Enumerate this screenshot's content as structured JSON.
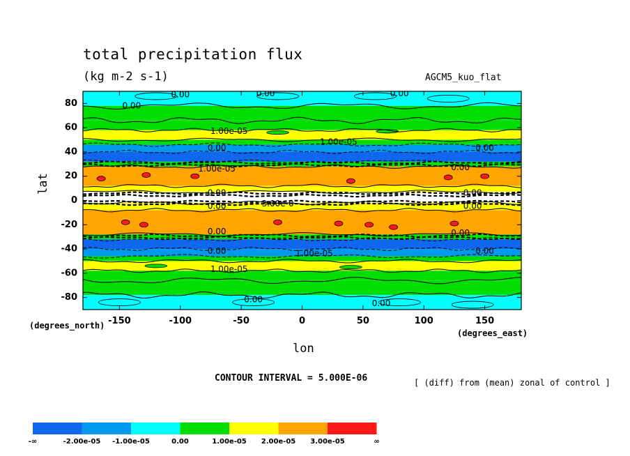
{
  "header": {
    "title": "total precipitation flux",
    "units": "(kg m-2 s-1)",
    "model": "AGCM5_kuo_flat"
  },
  "footer": {
    "contour_interval": "CONTOUR INTERVAL = 5.000E-06",
    "diff_note": "[ (diff) from (mean) zonal of control ]"
  },
  "chart_data": {
    "type": "heatmap",
    "title": "total precipitation flux",
    "subtitle": "(kg m-2 s-1)",
    "xlabel": "lon",
    "ylabel": "lat",
    "x_unit": "(degrees_east)",
    "y_unit": "(degrees_north)",
    "xlim": [
      -180,
      180
    ],
    "ylim": [
      -90,
      90
    ],
    "x_ticks": [
      -150,
      -100,
      -50,
      0,
      50,
      100,
      150
    ],
    "x_tick_labels": [
      "-150",
      "-100",
      "-50",
      "0",
      "50",
      "100",
      "150"
    ],
    "y_ticks": [
      80,
      60,
      40,
      20,
      0,
      -20,
      -40,
      -60,
      -80
    ],
    "y_tick_labels": [
      "80",
      "60",
      "40",
      "20",
      "0",
      "-20",
      "-40",
      "-60",
      "-80"
    ],
    "contour_interval": 5e-06,
    "color_levels": [
      {
        "label": "-∞",
        "color": "#1166ee"
      },
      {
        "label": "-2.00e-05",
        "color": "#0099ee"
      },
      {
        "label": "-1.00e-05",
        "color": "#00ffff"
      },
      {
        "label": "0.00",
        "color": "#00dd00"
      },
      {
        "label": "1.00e-05",
        "color": "#ffff00"
      },
      {
        "label": "2.00e-05",
        "color": "#ffa500"
      },
      {
        "label": "3.00e-05",
        "color": "#ff1a1a"
      },
      {
        "label": "∞",
        "color": null
      }
    ],
    "lat_bands": [
      {
        "lat_min": 78,
        "lat_max": 90,
        "value": -8e-06
      },
      {
        "lat_min": 66,
        "lat_max": 78,
        "value": 3e-06
      },
      {
        "lat_min": 58,
        "lat_max": 66,
        "value": 8e-06
      },
      {
        "lat_min": 50,
        "lat_max": 58,
        "value": 1.3e-05
      },
      {
        "lat_min": 46,
        "lat_max": 50,
        "value": 3e-06
      },
      {
        "lat_min": 40,
        "lat_max": 46,
        "value": -1.5e-05
      },
      {
        "lat_min": 32,
        "lat_max": 40,
        "value": -2.2e-05
      },
      {
        "lat_min": 28,
        "lat_max": 32,
        "value": 2e-06
      },
      {
        "lat_min": 12,
        "lat_max": 28,
        "value": 2.5e-05
      },
      {
        "lat_min": 7,
        "lat_max": 12,
        "value": 1.3e-05
      },
      {
        "lat_min": -2,
        "lat_max": 7,
        "value": null
      },
      {
        "lat_min": -8,
        "lat_max": -2,
        "value": 1.3e-05
      },
      {
        "lat_min": -28,
        "lat_max": -8,
        "value": 2.5e-05
      },
      {
        "lat_min": -32,
        "lat_max": -28,
        "value": 2e-06
      },
      {
        "lat_min": -40,
        "lat_max": -32,
        "value": -2.2e-05
      },
      {
        "lat_min": -46,
        "lat_max": -40,
        "value": -1.5e-05
      },
      {
        "lat_min": -50,
        "lat_max": -46,
        "value": 3e-06
      },
      {
        "lat_min": -58,
        "lat_max": -50,
        "value": 1.3e-05
      },
      {
        "lat_min": -66,
        "lat_max": -58,
        "value": 8e-06
      },
      {
        "lat_min": -78,
        "lat_max": -66,
        "value": 3e-06
      },
      {
        "lat_min": -90,
        "lat_max": -78,
        "value": -8e-06
      }
    ],
    "contour_labels": [
      {
        "text": "0.00",
        "lon": -100,
        "lat": 87
      },
      {
        "text": "0.00",
        "lon": -30,
        "lat": 88
      },
      {
        "text": "0.00",
        "lon": 80,
        "lat": 88
      },
      {
        "text": "0.00",
        "lon": -140,
        "lat": 78
      },
      {
        "text": "1.00e-05",
        "lon": -60,
        "lat": 57
      },
      {
        "text": "1.00e-05",
        "lon": 30,
        "lat": 48
      },
      {
        "text": "0.00",
        "lon": -70,
        "lat": 43
      },
      {
        "text": "0.00",
        "lon": 150,
        "lat": 43
      },
      {
        "text": "1.00e-05",
        "lon": -70,
        "lat": 26
      },
      {
        "text": "0.00",
        "lon": 130,
        "lat": 27
      },
      {
        "text": "0.00",
        "lon": -70,
        "lat": 6
      },
      {
        "text": "0.00",
        "lon": 140,
        "lat": 6
      },
      {
        "text": "0.00",
        "lon": -70,
        "lat": -5
      },
      {
        "text": "3.00e-0",
        "lon": -20,
        "lat": -3
      },
      {
        "text": "0.00",
        "lon": 140,
        "lat": -5
      },
      {
        "text": "0.00",
        "lon": -70,
        "lat": -26
      },
      {
        "text": "0.00",
        "lon": 130,
        "lat": -27
      },
      {
        "text": "0.00",
        "lon": -70,
        "lat": -42
      },
      {
        "text": "1.00e-05",
        "lon": 10,
        "lat": -44
      },
      {
        "text": "0.00",
        "lon": 150,
        "lat": -42
      },
      {
        "text": "1.00e-05",
        "lon": -60,
        "lat": -57
      },
      {
        "text": "0.00",
        "lon": -40,
        "lat": -82
      },
      {
        "text": "0.00",
        "lon": 65,
        "lat": -85
      }
    ]
  }
}
